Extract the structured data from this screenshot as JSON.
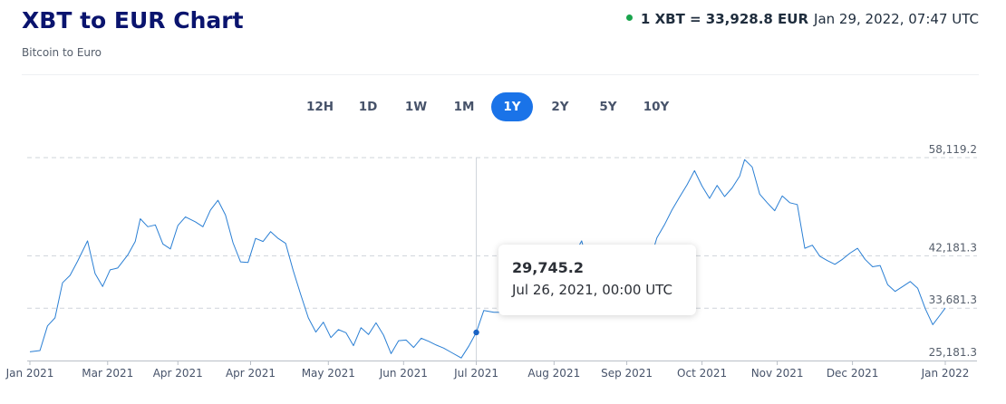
{
  "header": {
    "title": "XBT to EUR Chart",
    "subtitle": "Bitcoin to Euro",
    "rate_text": "1 XBT = 33,928.8 EUR",
    "rate_time": "Jan 29, 2022, 07:47 UTC",
    "live_color": "#19a44c"
  },
  "ranges": [
    {
      "label": "12H",
      "active": false
    },
    {
      "label": "1D",
      "active": false
    },
    {
      "label": "1W",
      "active": false
    },
    {
      "label": "1M",
      "active": false
    },
    {
      "label": "1Y",
      "active": true
    },
    {
      "label": "2Y",
      "active": false
    },
    {
      "label": "5Y",
      "active": false
    },
    {
      "label": "10Y",
      "active": false
    }
  ],
  "tooltip": {
    "value": "29,745.2",
    "date": "Jul 26, 2021, 00:00 UTC"
  },
  "colors": {
    "accent": "#1a73e8",
    "line": "#2a7fd4",
    "title": "#0a146e"
  },
  "chart_data": {
    "type": "line",
    "title": "XBT to EUR Chart",
    "ylim": [
      25181.3,
      58119.2
    ],
    "y_ticks": [
      {
        "value": 58119.2,
        "label": "58,119.2"
      },
      {
        "value": 42181.3,
        "label": "42,181.3"
      },
      {
        "value": 33681.3,
        "label": "33,681.3"
      },
      {
        "value": 25181.3,
        "label": "25,181.3"
      }
    ],
    "x_ticks": [
      {
        "date": "2021-01-29",
        "label": "Jan 2021"
      },
      {
        "date": "2021-03-01",
        "label": "Mar 2021"
      },
      {
        "date": "2021-03-29",
        "label": "Apr 2021"
      },
      {
        "date": "2021-04-27",
        "label": "Apr 2021"
      },
      {
        "date": "2021-05-28",
        "label": "May 2021"
      },
      {
        "date": "2021-06-27",
        "label": "Jun 2021"
      },
      {
        "date": "2021-07-26",
        "label": "Jul 2021"
      },
      {
        "date": "2021-08-26",
        "label": "Aug 2021"
      },
      {
        "date": "2021-09-24",
        "label": "Sep 2021"
      },
      {
        "date": "2021-10-24",
        "label": "Oct 2021"
      },
      {
        "date": "2021-11-23",
        "label": "Nov 2021"
      },
      {
        "date": "2021-12-23",
        "label": "Dec 2021"
      },
      {
        "date": "2022-01-29",
        "label": "Jan 2022"
      }
    ],
    "grid": true,
    "highlight": {
      "date": "2021-07-26",
      "value": 29745.2
    },
    "series": [
      {
        "points": [
          [
            "2021-01-29",
            26600
          ],
          [
            "2021-02-02",
            26800
          ],
          [
            "2021-02-05",
            30800
          ],
          [
            "2021-02-08",
            32100
          ],
          [
            "2021-02-11",
            37800
          ],
          [
            "2021-02-14",
            39000
          ],
          [
            "2021-02-17",
            41300
          ],
          [
            "2021-02-21",
            44600
          ],
          [
            "2021-02-24",
            39300
          ],
          [
            "2021-02-27",
            37200
          ],
          [
            "2021-03-02",
            39900
          ],
          [
            "2021-03-05",
            40200
          ],
          [
            "2021-03-09",
            42300
          ],
          [
            "2021-03-12",
            44500
          ],
          [
            "2021-03-14",
            48200
          ],
          [
            "2021-03-17",
            46900
          ],
          [
            "2021-03-20",
            47200
          ],
          [
            "2021-03-23",
            44100
          ],
          [
            "2021-03-26",
            43300
          ],
          [
            "2021-03-29",
            47100
          ],
          [
            "2021-04-01",
            48500
          ],
          [
            "2021-04-05",
            47700
          ],
          [
            "2021-04-08",
            46900
          ],
          [
            "2021-04-11",
            49600
          ],
          [
            "2021-04-14",
            51200
          ],
          [
            "2021-04-17",
            48800
          ],
          [
            "2021-04-20",
            44300
          ],
          [
            "2021-04-23",
            41200
          ],
          [
            "2021-04-26",
            41100
          ],
          [
            "2021-04-29",
            45000
          ],
          [
            "2021-05-02",
            44500
          ],
          [
            "2021-05-05",
            46100
          ],
          [
            "2021-05-08",
            45000
          ],
          [
            "2021-05-11",
            44200
          ],
          [
            "2021-05-14",
            39800
          ],
          [
            "2021-05-17",
            35900
          ],
          [
            "2021-05-20",
            32100
          ],
          [
            "2021-05-23",
            29800
          ],
          [
            "2021-05-26",
            31400
          ],
          [
            "2021-05-29",
            28900
          ],
          [
            "2021-06-01",
            30200
          ],
          [
            "2021-06-04",
            29700
          ],
          [
            "2021-06-07",
            27600
          ],
          [
            "2021-06-10",
            30500
          ],
          [
            "2021-06-13",
            29400
          ],
          [
            "2021-06-16",
            31300
          ],
          [
            "2021-06-19",
            29300
          ],
          [
            "2021-06-22",
            26300
          ],
          [
            "2021-06-25",
            28400
          ],
          [
            "2021-06-28",
            28500
          ],
          [
            "2021-07-01",
            27300
          ],
          [
            "2021-07-04",
            28800
          ],
          [
            "2021-07-07",
            28300
          ],
          [
            "2021-07-10",
            27700
          ],
          [
            "2021-07-13",
            27200
          ],
          [
            "2021-07-16",
            26500
          ],
          [
            "2021-07-20",
            25600
          ],
          [
            "2021-07-23",
            27500
          ],
          [
            "2021-07-26",
            29745
          ],
          [
            "2021-07-29",
            33300
          ],
          [
            "2021-08-02",
            33000
          ],
          [
            "2021-08-05",
            33000
          ],
          [
            "2021-08-08",
            36500
          ],
          [
            "2021-08-11",
            38600
          ],
          [
            "2021-08-14",
            39500
          ],
          [
            "2021-08-17",
            40000
          ],
          [
            "2021-08-21",
            41500
          ],
          [
            "2021-08-24",
            40200
          ],
          [
            "2021-08-27",
            41000
          ],
          [
            "2021-08-30",
            42000
          ],
          [
            "2021-09-02",
            41600
          ],
          [
            "2021-09-06",
            44600
          ],
          [
            "2021-09-09",
            40000
          ],
          [
            "2021-09-12",
            39500
          ],
          [
            "2021-09-15",
            40600
          ],
          [
            "2021-09-18",
            40600
          ],
          [
            "2021-09-21",
            36600
          ],
          [
            "2021-09-24",
            38100
          ],
          [
            "2021-09-27",
            37300
          ],
          [
            "2021-09-30",
            38100
          ],
          [
            "2021-10-03",
            41000
          ],
          [
            "2021-10-06",
            45100
          ],
          [
            "2021-10-09",
            47200
          ],
          [
            "2021-10-12",
            49600
          ],
          [
            "2021-10-15",
            51700
          ],
          [
            "2021-10-18",
            53700
          ],
          [
            "2021-10-21",
            56000
          ],
          [
            "2021-10-24",
            53500
          ],
          [
            "2021-10-27",
            51500
          ],
          [
            "2021-10-30",
            53600
          ],
          [
            "2021-11-02",
            51800
          ],
          [
            "2021-11-05",
            53200
          ],
          [
            "2021-11-08",
            55100
          ],
          [
            "2021-11-10",
            57800
          ],
          [
            "2021-11-13",
            56600
          ],
          [
            "2021-11-16",
            52200
          ],
          [
            "2021-11-19",
            50800
          ],
          [
            "2021-11-22",
            49500
          ],
          [
            "2021-11-25",
            51900
          ],
          [
            "2021-11-28",
            50800
          ],
          [
            "2021-12-01",
            50500
          ],
          [
            "2021-12-04",
            43400
          ],
          [
            "2021-12-07",
            43900
          ],
          [
            "2021-12-10",
            42100
          ],
          [
            "2021-12-13",
            41400
          ],
          [
            "2021-12-16",
            40800
          ],
          [
            "2021-12-19",
            41600
          ],
          [
            "2021-12-22",
            42600
          ],
          [
            "2021-12-25",
            43400
          ],
          [
            "2021-12-28",
            41600
          ],
          [
            "2021-12-31",
            40400
          ],
          [
            "2022-01-03",
            40600
          ],
          [
            "2022-01-06",
            37500
          ],
          [
            "2022-01-09",
            36400
          ],
          [
            "2022-01-12",
            37200
          ],
          [
            "2022-01-15",
            38000
          ],
          [
            "2022-01-18",
            36900
          ],
          [
            "2022-01-21",
            33600
          ],
          [
            "2022-01-24",
            31000
          ],
          [
            "2022-01-27",
            32600
          ],
          [
            "2022-01-29",
            33700
          ]
        ]
      }
    ]
  }
}
